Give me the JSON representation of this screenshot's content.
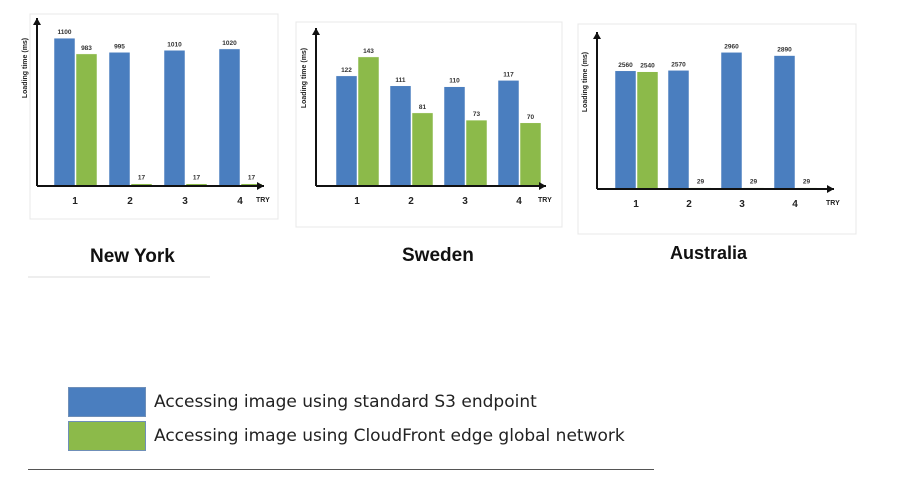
{
  "colors": {
    "s3": "#4a7ebf",
    "cloudfront": "#8cba4a"
  },
  "legend": {
    "items": [
      {
        "label": "Accessing image using standard S3 endpoint",
        "color": "#4a7ebf"
      },
      {
        "label": "Accessing image using CloudFront edge global network",
        "color": "#8cba4a"
      }
    ]
  },
  "chart_data": [
    {
      "type": "bar",
      "title": "New York",
      "ylabel": "Loading time (ms)",
      "xlabel": "TRY",
      "categories": [
        "1",
        "2",
        "3",
        "4"
      ],
      "ylim": [
        0,
        1250
      ],
      "series": [
        {
          "name": "Accessing image using standard S3 endpoint",
          "values": [
            1100,
            995,
            1010,
            1020
          ]
        },
        {
          "name": "Accessing image using CloudFront edge global network",
          "values": [
            983,
            17,
            17,
            17
          ]
        }
      ]
    },
    {
      "type": "bar",
      "title": "Sweden",
      "ylabel": "Loading time (ms)",
      "xlabel": "TRY",
      "categories": [
        "1",
        "2",
        "3",
        "4"
      ],
      "ylim": [
        0,
        175
      ],
      "series": [
        {
          "name": "Accessing image using standard S3 endpoint",
          "values": [
            122,
            111,
            110,
            117
          ]
        },
        {
          "name": "Accessing image using CloudFront edge global network",
          "values": [
            143,
            81,
            73,
            70
          ]
        }
      ]
    },
    {
      "type": "bar",
      "title": "Australia",
      "ylabel": "Loading time (ms)",
      "xlabel": "TRY",
      "categories": [
        "1",
        "2",
        "3",
        "4"
      ],
      "ylim": [
        0,
        3400
      ],
      "series": [
        {
          "name": "Accessing image using standard S3 endpoint",
          "values": [
            2560,
            2570,
            2960,
            2890
          ]
        },
        {
          "name": "Accessing image using CloudFront edge global network",
          "values": [
            2540,
            29,
            29,
            29
          ]
        }
      ]
    }
  ]
}
